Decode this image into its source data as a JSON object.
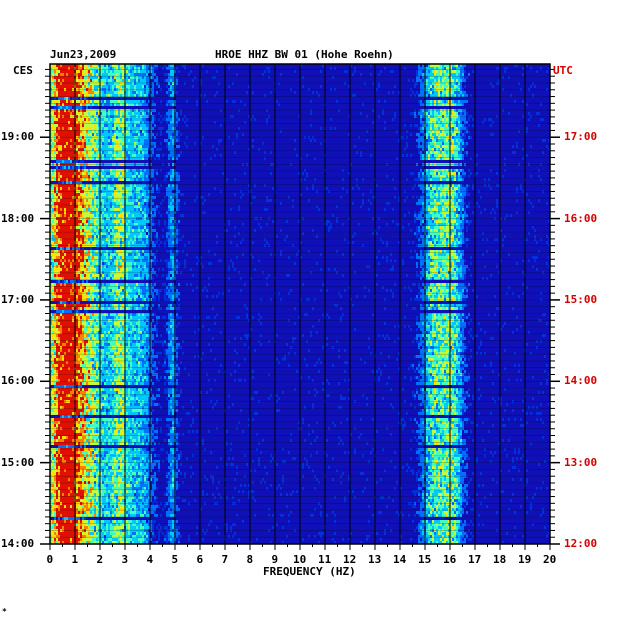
{
  "header": {
    "date": "Jun23,2009",
    "station": "HROE HHZ BW 01 (Hohe Roehn)",
    "left_tz": "CES",
    "right_tz": "UTC"
  },
  "footer": {
    "corner_mark": "*"
  },
  "colors": {
    "background": "#1010b8",
    "left_axis_labels": "#000000",
    "right_axis_labels": "#d40000",
    "gridlines": "#000000"
  },
  "chart_data": {
    "type": "heatmap",
    "title": "HROE HHZ BW 01 (Hohe Roehn)",
    "subtitle": "Jun23,2009",
    "xlabel": "FREQUENCY (HZ)",
    "ylabel_left": "CES",
    "ylabel_right": "UTC",
    "x_ticks": [
      "0",
      "1",
      "2",
      "3",
      "4",
      "5",
      "6",
      "7",
      "8",
      "9",
      "10",
      "11",
      "12",
      "13",
      "14",
      "15",
      "16",
      "17",
      "18",
      "19",
      "20"
    ],
    "xlim": [
      0,
      20
    ],
    "y_ticks_left": [
      "14:00",
      "15:00",
      "16:00",
      "17:00",
      "18:00",
      "19:00"
    ],
    "y_ticks_right": [
      "12:00",
      "13:00",
      "14:00",
      "15:00",
      "16:00",
      "17:00"
    ],
    "ylim_left_hours": [
      14,
      19.9
    ],
    "colorscale": [
      "#0a10a8",
      "#0030e0",
      "#0070ff",
      "#00c8ff",
      "#40ffc0",
      "#c0ff40",
      "#ffe000",
      "#ff8000",
      "#e01000"
    ],
    "energy_bands_hz": [
      {
        "center": 0.6,
        "width": 0.5,
        "strength": 0.95
      },
      {
        "center": 1.3,
        "width": 0.9,
        "strength": 0.6
      },
      {
        "center": 2.8,
        "width": 0.4,
        "strength": 0.45
      },
      {
        "center": 3.6,
        "width": 0.5,
        "strength": 0.3
      },
      {
        "center": 4.9,
        "width": 0.2,
        "strength": 0.25
      },
      {
        "center": 15.4,
        "width": 0.5,
        "strength": 0.45
      },
      {
        "center": 16.1,
        "width": 0.4,
        "strength": 0.45
      }
    ],
    "grid": true
  }
}
